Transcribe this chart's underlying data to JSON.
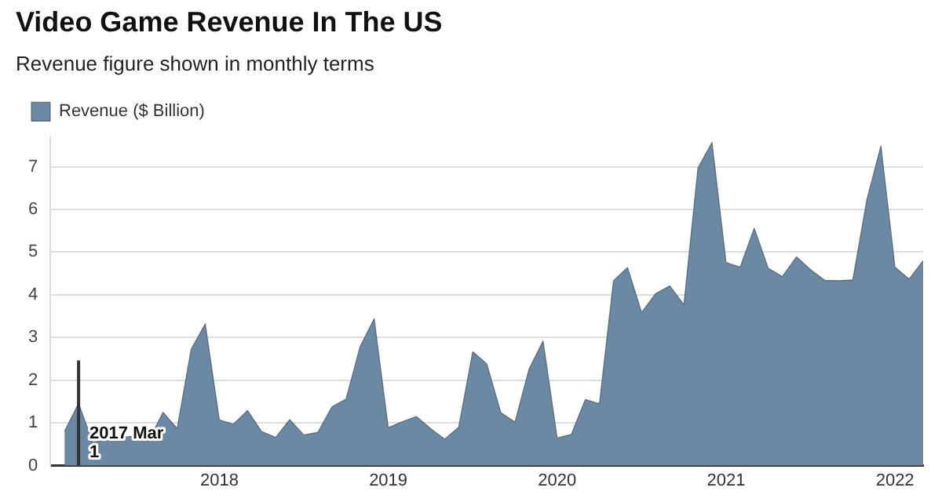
{
  "chart_data": {
    "type": "area",
    "title": "Video Game Revenue In The US",
    "subtitle": "Revenue figure shown in monthly terms",
    "x": [
      "2017-02",
      "2017-03",
      "2017-04",
      "2017-05",
      "2017-06",
      "2017-07",
      "2017-08",
      "2017-09",
      "2017-10",
      "2017-11",
      "2017-12",
      "2018-01",
      "2018-02",
      "2018-03",
      "2018-04",
      "2018-05",
      "2018-06",
      "2018-07",
      "2018-08",
      "2018-09",
      "2018-10",
      "2018-11",
      "2018-12",
      "2019-01",
      "2019-02",
      "2019-03",
      "2019-04",
      "2019-05",
      "2019-06",
      "2019-07",
      "2019-08",
      "2019-09",
      "2019-10",
      "2019-11",
      "2019-12",
      "2020-01",
      "2020-02",
      "2020-03",
      "2020-04",
      "2020-05",
      "2020-06",
      "2020-07",
      "2020-08",
      "2020-09",
      "2020-10",
      "2020-11",
      "2020-12",
      "2021-01",
      "2021-02",
      "2021-03",
      "2021-04",
      "2021-05",
      "2021-06",
      "2021-07",
      "2021-08",
      "2021-09",
      "2021-10",
      "2021-11",
      "2021-12",
      "2022-01",
      "2022-02",
      "2022-03"
    ],
    "series": [
      {
        "name": "Revenue ($ Billion)",
        "color": "#6b89a3",
        "values": [
          0.8,
          1.46,
          0.55,
          0.6,
          0.65,
          0.7,
          0.6,
          1.25,
          0.87,
          2.73,
          3.32,
          1.07,
          0.97,
          1.29,
          0.8,
          0.66,
          1.08,
          0.72,
          0.78,
          1.38,
          1.56,
          2.79,
          3.44,
          0.89,
          1.03,
          1.15,
          0.87,
          0.62,
          0.9,
          2.67,
          2.38,
          1.24,
          1.02,
          2.26,
          2.92,
          0.65,
          0.73,
          1.55,
          1.45,
          4.33,
          4.64,
          3.59,
          4.03,
          4.21,
          3.77,
          6.97,
          7.57,
          4.76,
          4.65,
          5.56,
          4.62,
          4.43,
          4.89,
          4.59,
          4.34,
          4.33,
          4.35,
          6.23,
          7.49,
          4.65,
          4.37,
          4.8
        ]
      }
    ],
    "xlim": [
      "2017-01",
      "2022-03"
    ],
    "xticks": [
      "2018",
      "2019",
      "2020",
      "2021",
      "2022"
    ],
    "ylim": [
      0,
      7.7
    ],
    "yticks": [
      0,
      1,
      2,
      3,
      4,
      5,
      6,
      7
    ],
    "ref_lines": [
      {
        "axis": "x",
        "value": "2017-03",
        "label": "2017 Mar 1",
        "color": "#333333"
      }
    ],
    "grid": "y",
    "legend": "top left"
  }
}
